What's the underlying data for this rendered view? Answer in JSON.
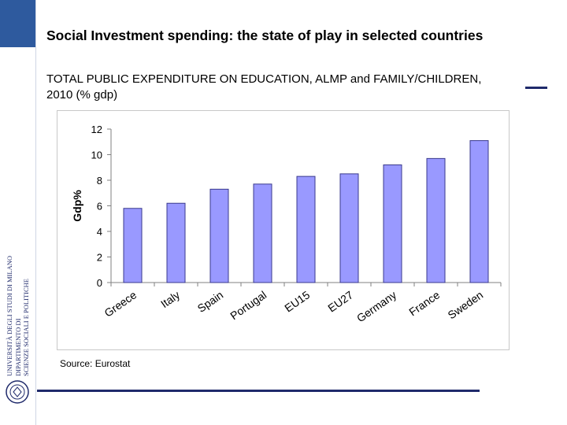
{
  "slide": {
    "title": "Social Investment spending: the state of play in selected countries",
    "subtitle": "TOTAL PUBLIC EXPENDITURE ON EDUCATION, ALMP and FAMILY/CHILDREN, 2010 (% gdp)",
    "source": "Source: Eurostat"
  },
  "logo": {
    "line1": "UNIVERSITÀ DEGLI STUDI DI MILANO",
    "line2": "DIPARTIMENTO DI",
    "line3": "SCIENZE SOCIALI E POLITICHE"
  },
  "colors": {
    "bar_fill": "#9999ff",
    "bar_stroke": "#3a3a8c",
    "accent": "#1f2a6b",
    "sidebar": "#2e5a9e"
  },
  "chart_data": {
    "type": "bar",
    "title": "",
    "xlabel": "",
    "ylabel": "Gdp%",
    "categories": [
      "Greece",
      "Italy",
      "Spain",
      "Portugal",
      "EU15",
      "EU27",
      "Germany",
      "France",
      "Sweden"
    ],
    "values": [
      5.8,
      6.2,
      7.3,
      7.7,
      8.3,
      8.5,
      9.2,
      9.7,
      11.1
    ],
    "ylim": [
      0,
      12
    ],
    "yticks": [
      "0",
      "2",
      "4",
      "6",
      "8",
      "10",
      "12"
    ],
    "grid": false,
    "legend": "none"
  }
}
